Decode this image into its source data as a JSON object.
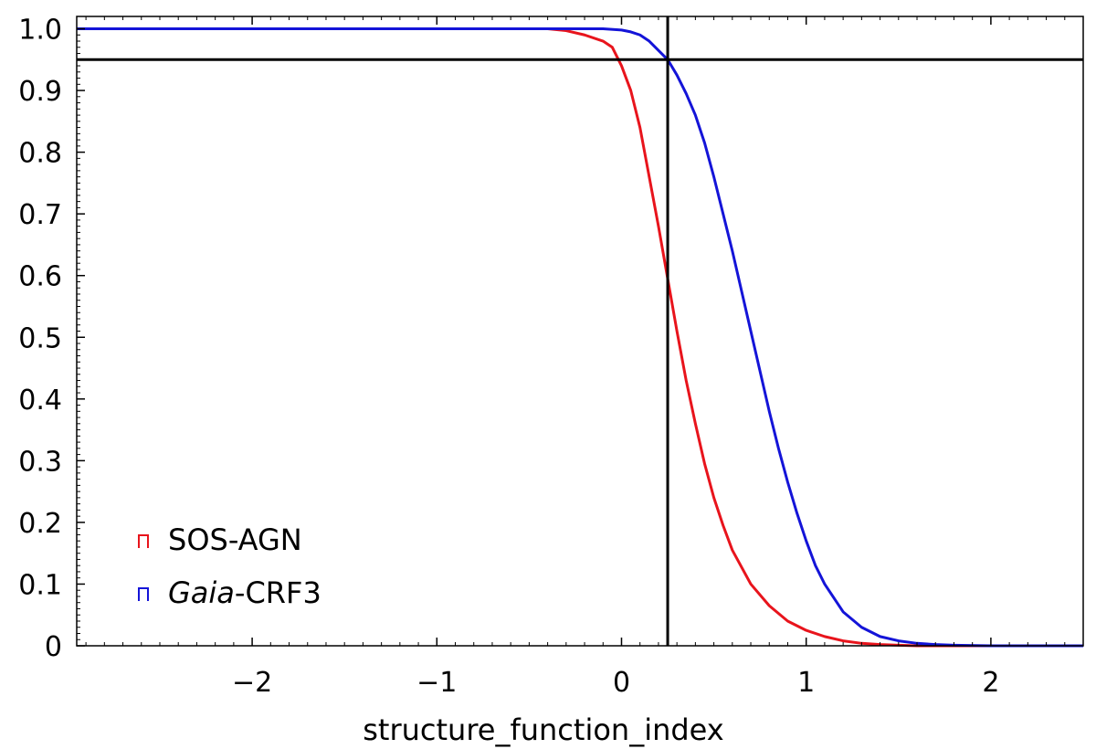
{
  "chart_data": {
    "type": "line",
    "title": "",
    "xlabel": "structure_function_index",
    "ylabel": "",
    "xlim": [
      -2.95,
      2.5
    ],
    "ylim": [
      0,
      1.02
    ],
    "x_ticks": [
      -2,
      -1,
      0,
      1,
      2
    ],
    "x_tick_labels": [
      "−2",
      "−1",
      "0",
      "1",
      "2"
    ],
    "y_ticks": [
      0,
      0.1,
      0.2,
      0.3,
      0.4,
      0.5,
      0.6,
      0.7,
      0.8,
      0.9,
      1.0
    ],
    "y_tick_labels": [
      "0",
      "0.1",
      "0.2",
      "0.3",
      "0.4",
      "0.5",
      "0.6",
      "0.7",
      "0.8",
      "0.9",
      "1.0"
    ],
    "grid": false,
    "legend_position": "bottom-left",
    "reference_lines": {
      "vertical_x": 0.25,
      "horizontal_y": 0.95
    },
    "series": [
      {
        "name": "SOS-AGN",
        "color": "#e8141c",
        "x": [
          -2.95,
          -0.4,
          -0.3,
          -0.2,
          -0.1,
          -0.05,
          0,
          0.05,
          0.1,
          0.15,
          0.2,
          0.25,
          0.3,
          0.35,
          0.4,
          0.45,
          0.5,
          0.55,
          0.6,
          0.7,
          0.8,
          0.9,
          1.0,
          1.1,
          1.2,
          1.3,
          1.4,
          1.5,
          1.6,
          1.8,
          2.0,
          2.5
        ],
        "values": [
          1.0,
          1.0,
          0.997,
          0.99,
          0.98,
          0.97,
          0.94,
          0.9,
          0.84,
          0.76,
          0.68,
          0.595,
          0.51,
          0.43,
          0.36,
          0.295,
          0.24,
          0.195,
          0.155,
          0.1,
          0.065,
          0.04,
          0.025,
          0.015,
          0.008,
          0.004,
          0.002,
          0.001,
          0.0,
          0.0,
          0.0,
          0.0
        ]
      },
      {
        "name": "Gaia-CRF3",
        "name_italic_part": "Gaia",
        "name_rest": "-CRF3",
        "color": "#1414d8",
        "x": [
          -2.95,
          -0.1,
          0,
          0.05,
          0.1,
          0.15,
          0.2,
          0.25,
          0.3,
          0.35,
          0.4,
          0.45,
          0.5,
          0.55,
          0.6,
          0.65,
          0.7,
          0.75,
          0.8,
          0.85,
          0.9,
          0.95,
          1.0,
          1.05,
          1.1,
          1.2,
          1.3,
          1.4,
          1.5,
          1.6,
          1.7,
          1.8,
          2.0,
          2.5
        ],
        "values": [
          1.0,
          1.0,
          0.998,
          0.995,
          0.99,
          0.98,
          0.965,
          0.95,
          0.925,
          0.895,
          0.86,
          0.815,
          0.76,
          0.7,
          0.64,
          0.575,
          0.51,
          0.445,
          0.38,
          0.32,
          0.265,
          0.215,
          0.17,
          0.13,
          0.1,
          0.055,
          0.03,
          0.015,
          0.008,
          0.004,
          0.002,
          0.001,
          0.0,
          0.0
        ]
      }
    ]
  }
}
